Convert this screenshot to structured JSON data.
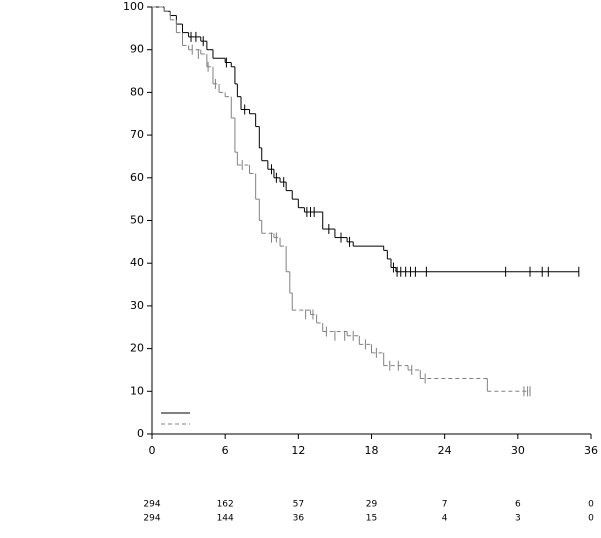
{
  "chart_data": {
    "type": "step",
    "xlim": [
      0,
      36
    ],
    "xticks": [
      0,
      6,
      12,
      18,
      24,
      30,
      36
    ],
    "ylim": [
      0,
      100
    ],
    "yticks": [
      0,
      10,
      20,
      30,
      40,
      50,
      60,
      70,
      80,
      90,
      100
    ],
    "series": [
      {
        "color": "#000000",
        "line_style": "solid",
        "x": [
          0,
          1,
          1.5,
          2,
          2.5,
          3,
          4,
          4.5,
          5,
          6,
          6.5,
          6.8,
          7,
          7.3,
          8,
          8.5,
          8.8,
          9,
          9.5,
          10,
          10.5,
          11,
          11.5,
          12,
          12.5,
          14,
          15,
          16,
          16.5,
          19,
          19.3,
          19.6,
          20,
          35
        ],
        "values": [
          100,
          99,
          98,
          96,
          94,
          93,
          92,
          90,
          88,
          87,
          86,
          82,
          79,
          76,
          75,
          72,
          67,
          64,
          62,
          60,
          59,
          57,
          55,
          53,
          52,
          48,
          46,
          45,
          44,
          43,
          41,
          39,
          38,
          38
        ],
        "censor_x": [
          3.2,
          3.6,
          4.2,
          6.1,
          7.6,
          9.8,
          10.2,
          10.8,
          12.7,
          13,
          13.3,
          14.5,
          15.5,
          16.2,
          19.8,
          20.1,
          20.4,
          20.8,
          21.2,
          21.6,
          22.5,
          29,
          31,
          32,
          32.5,
          35
        ],
        "censor_y": [
          93,
          93,
          92,
          87,
          76,
          62,
          60,
          59,
          52,
          52,
          52,
          48,
          46,
          45,
          39,
          38,
          38,
          38,
          38,
          38,
          38,
          38,
          38,
          38,
          38,
          38
        ]
      },
      {
        "color": "#808080",
        "line_style": "dashed",
        "x": [
          0,
          1,
          1.5,
          2,
          2.5,
          3,
          4,
          4.5,
          5,
          5.5,
          6,
          6.5,
          6.8,
          7,
          8,
          8.5,
          8.8,
          9,
          10,
          10.5,
          11,
          11.3,
          11.5,
          13,
          13.5,
          14,
          16,
          17,
          18,
          19,
          21,
          22,
          27.5,
          31
        ],
        "values": [
          100,
          99,
          97,
          94,
          91,
          90,
          89,
          86,
          82,
          80,
          79,
          74,
          66,
          63,
          61,
          55,
          50,
          47,
          46,
          44,
          38,
          33,
          29,
          28,
          26,
          24,
          23,
          21,
          19,
          16,
          15,
          13,
          10,
          10
        ],
        "censor_x": [
          3.3,
          3.8,
          4.6,
          5.2,
          7.4,
          9.8,
          10.2,
          12.6,
          13.2,
          14.3,
          15,
          15.8,
          16.5,
          17.5,
          18.4,
          19.5,
          20.2,
          21.3,
          22.4,
          30.5,
          30.8,
          31
        ],
        "censor_y": [
          90,
          89,
          86,
          82,
          63,
          46,
          46,
          28,
          28,
          24,
          23,
          23,
          23,
          21,
          19,
          16,
          16,
          15,
          13,
          10,
          10,
          10
        ]
      }
    ],
    "risk_table": [
      [
        294,
        162,
        57,
        29,
        7,
        6,
        0
      ],
      [
        294,
        144,
        36,
        15,
        4,
        3,
        0
      ]
    ]
  }
}
